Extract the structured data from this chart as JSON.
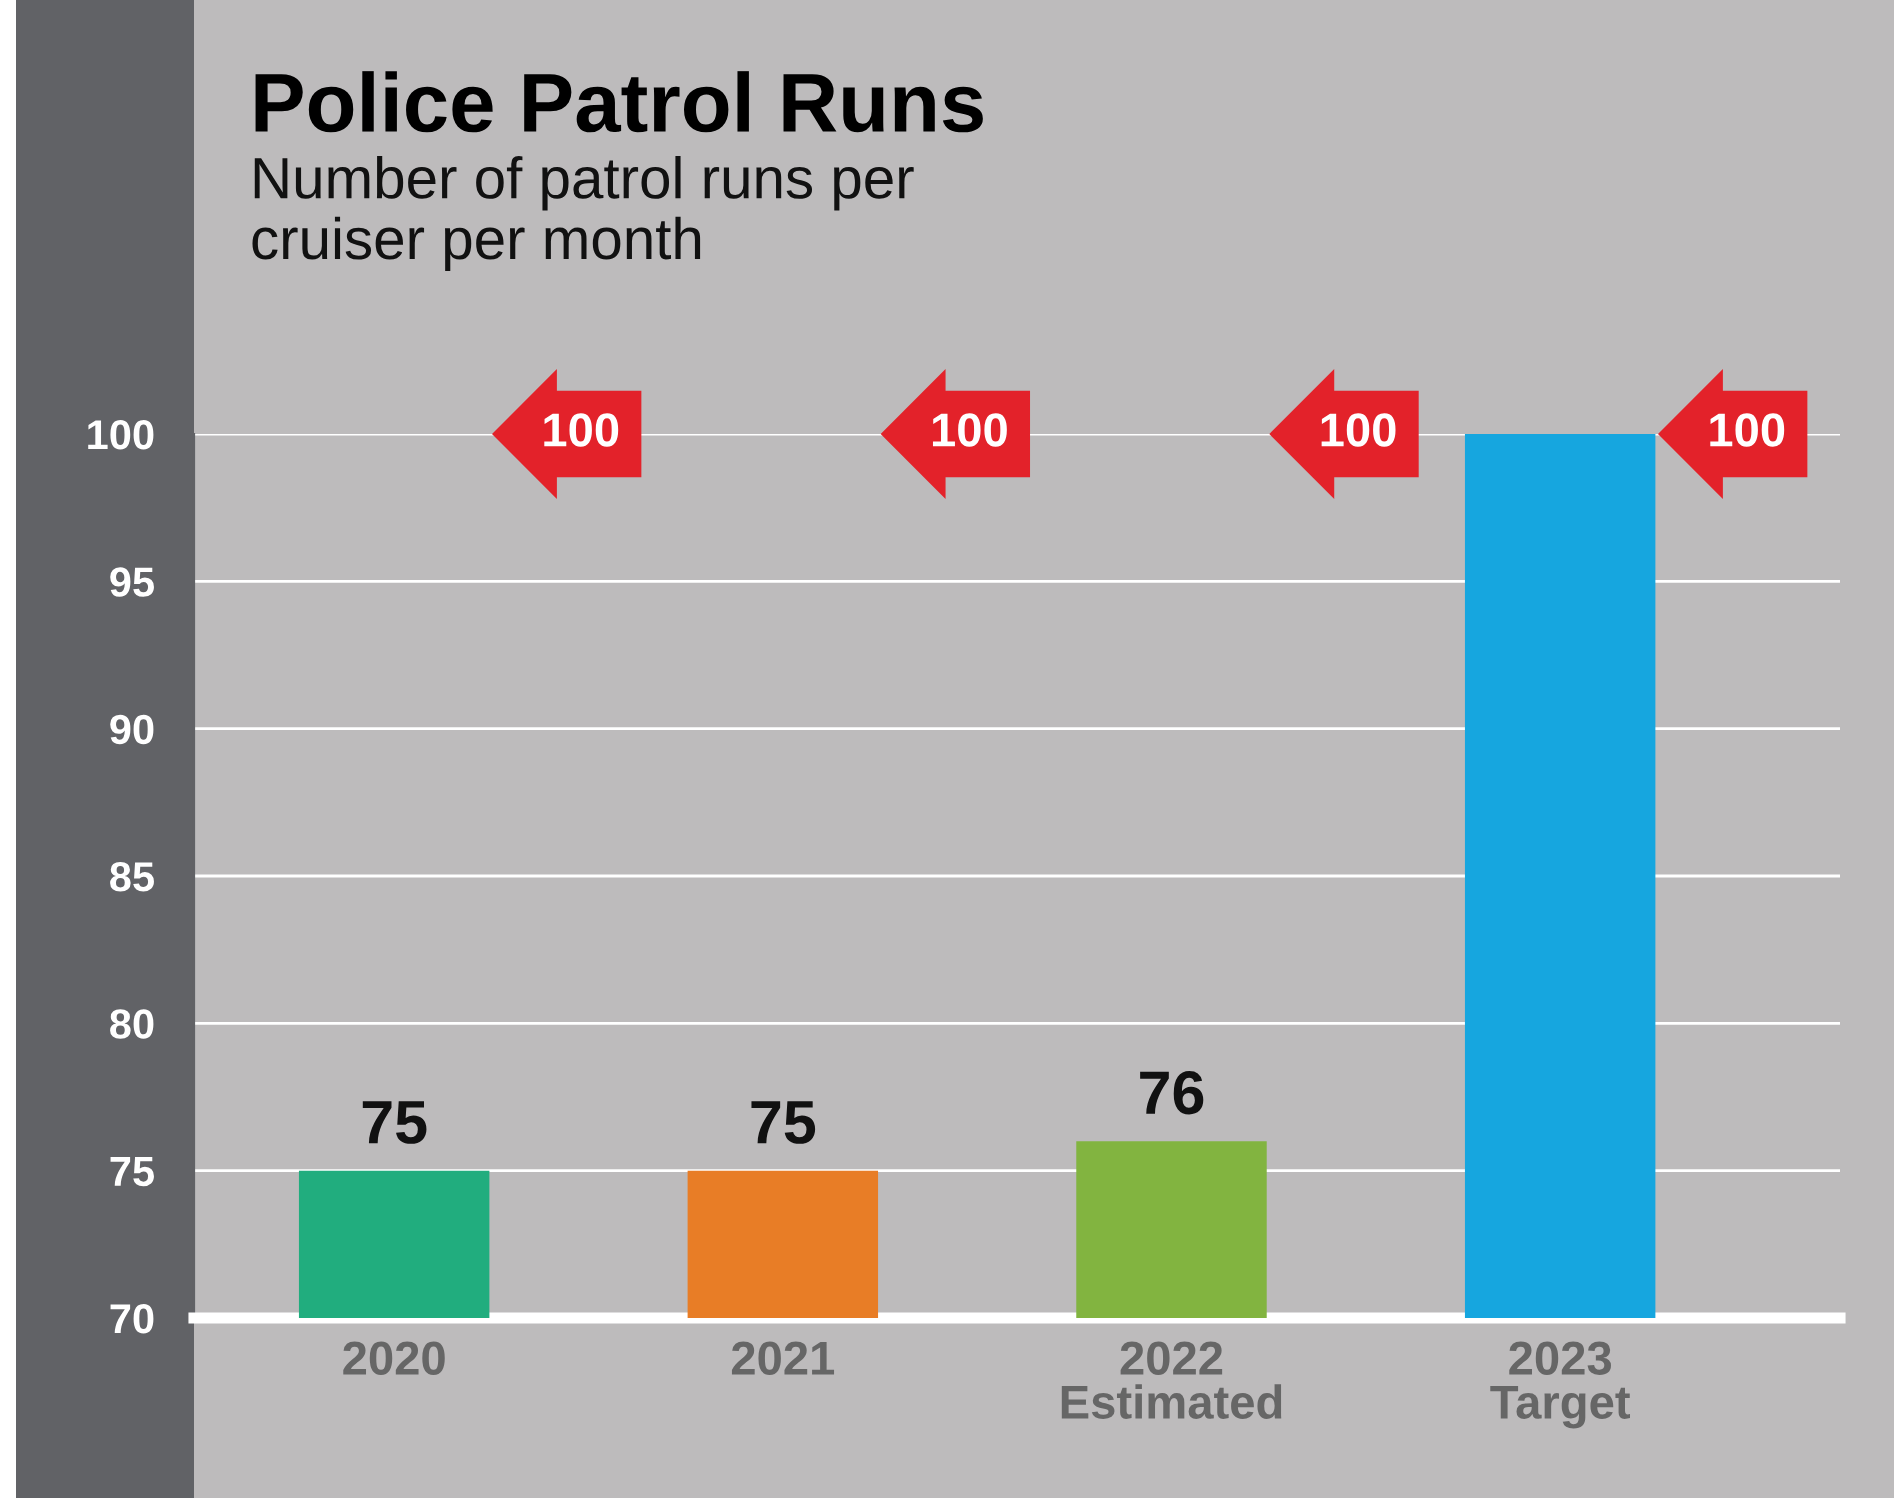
{
  "chart_data": {
    "type": "bar",
    "title": "Police Patrol Runs",
    "subtitle": "Number of patrol runs per\ncruiser per month",
    "categories": [
      "2020",
      "2021",
      "2022\nEstimated",
      "2023\nTarget"
    ],
    "series": [
      {
        "colors": [
          "#21ad7e",
          "#e87d26",
          "#82b440",
          "#16a6df"
        ],
        "values": [
          75,
          75,
          76,
          100
        ],
        "value_labels": [
          "75",
          "75",
          "76",
          null
        ]
      }
    ],
    "annotations": [
      "100",
      "100",
      "100",
      "100"
    ],
    "ylim": [
      70,
      100
    ],
    "yticks": [
      70,
      75,
      80,
      85,
      90,
      95,
      100
    ],
    "grid": "y",
    "legend": false
  }
}
